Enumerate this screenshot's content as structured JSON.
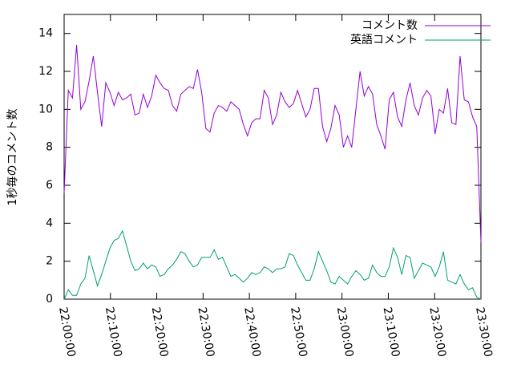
{
  "chart_data": {
    "type": "line",
    "ylabel": "1秒毎のコメント数",
    "x": [
      "22:00:00",
      "22:00:54",
      "22:01:48",
      "22:02:42",
      "22:03:36",
      "22:04:30",
      "22:05:24",
      "22:06:18",
      "22:07:12",
      "22:08:06",
      "22:09:00",
      "22:09:54",
      "22:10:48",
      "22:11:42",
      "22:12:36",
      "22:13:30",
      "22:14:24",
      "22:15:18",
      "22:16:12",
      "22:17:06",
      "22:18:00",
      "22:18:54",
      "22:19:48",
      "22:20:42",
      "22:21:36",
      "22:22:30",
      "22:23:24",
      "22:24:18",
      "22:25:12",
      "22:26:06",
      "22:27:00",
      "22:27:54",
      "22:28:48",
      "22:29:42",
      "22:30:36",
      "22:31:30",
      "22:32:24",
      "22:33:18",
      "22:34:12",
      "22:35:06",
      "22:36:00",
      "22:36:54",
      "22:37:48",
      "22:38:42",
      "22:39:36",
      "22:40:30",
      "22:41:24",
      "22:42:18",
      "22:43:12",
      "22:44:06",
      "22:45:00",
      "22:45:54",
      "22:46:48",
      "22:47:42",
      "22:48:36",
      "22:49:30",
      "22:50:24",
      "22:51:18",
      "22:52:12",
      "22:53:06",
      "22:54:00",
      "22:54:54",
      "22:55:48",
      "22:56:42",
      "22:57:36",
      "22:58:30",
      "22:59:24",
      "23:00:18",
      "23:01:12",
      "23:02:06",
      "23:03:00",
      "23:03:54",
      "23:04:48",
      "23:05:42",
      "23:06:36",
      "23:07:30",
      "23:08:24",
      "23:09:18",
      "23:10:12",
      "23:11:06",
      "23:12:00",
      "23:12:54",
      "23:13:48",
      "23:14:42",
      "23:15:36",
      "23:16:30",
      "23:17:24",
      "23:18:18",
      "23:19:12",
      "23:20:06",
      "23:21:00",
      "23:21:54",
      "23:22:48",
      "23:23:42",
      "23:24:36",
      "23:25:30",
      "23:26:24",
      "23:27:18",
      "23:28:12",
      "23:29:06",
      "23:30:00"
    ],
    "series": [
      {
        "name": "コメント数",
        "color": "#9400d3",
        "values": [
          5.6,
          11,
          10.6,
          13.4,
          10,
          10.4,
          11.5,
          12.8,
          10.9,
          9.1,
          11.4,
          10.9,
          10.2,
          10.9,
          10.5,
          10.6,
          10.8,
          9.7,
          9.8,
          10.8,
          10.1,
          10.7,
          11.8,
          11.4,
          11.1,
          11,
          10.2,
          9.9,
          10.8,
          11,
          11.2,
          11.1,
          12.1,
          10.9,
          9,
          8.8,
          9.8,
          10.2,
          10.1,
          9.9,
          10.4,
          10.2,
          10,
          9.2,
          8.6,
          9.3,
          9.5,
          9.5,
          11,
          10.6,
          9.2,
          9.7,
          10.9,
          10.4,
          10.1,
          10.3,
          11,
          10.3,
          9.6,
          10,
          11.1,
          11.1,
          9.1,
          8.3,
          9,
          10.2,
          9.7,
          8,
          8.6,
          8,
          10,
          12,
          10.7,
          11.2,
          10.8,
          9.2,
          8.6,
          7.9,
          10.5,
          10.9,
          9.6,
          9.1,
          10.5,
          11.4,
          10.2,
          9.7,
          10.6,
          11,
          10.7,
          8.7,
          10,
          9.8,
          11.1,
          9.3,
          9.2,
          12.8,
          10.5,
          10.4,
          9.6,
          9.1,
          3
        ]
      },
      {
        "name": "英語コメント",
        "color": "#009e73",
        "values": [
          0,
          0.5,
          0.2,
          0.2,
          0.8,
          1.1,
          2.3,
          1.5,
          0.7,
          1.3,
          2.0,
          2.7,
          3.1,
          3.2,
          3.6,
          2.8,
          2.0,
          1.5,
          1.6,
          1.9,
          1.6,
          1.8,
          1.7,
          1.2,
          1.3,
          1.6,
          1.8,
          2.1,
          2.5,
          2.4,
          2.0,
          1.7,
          1.8,
          2.2,
          2.2,
          2.2,
          2.6,
          2.1,
          2.2,
          1.7,
          1.2,
          1.3,
          1.1,
          0.9,
          1.1,
          1.4,
          1.3,
          1.4,
          1.7,
          1.6,
          1.4,
          1.6,
          1.6,
          1.7,
          2.4,
          2.3,
          1.8,
          1.4,
          1.0,
          1.0,
          1.6,
          2.5,
          2.0,
          1.5,
          0.9,
          0.8,
          1.2,
          1.0,
          0.8,
          1.2,
          1.5,
          1.3,
          1.0,
          1.1,
          1.8,
          1.4,
          1.2,
          1.2,
          1.7,
          2.7,
          2.2,
          1.3,
          2.3,
          2.2,
          1.1,
          1.5,
          1.9,
          1.8,
          1.7,
          1.2,
          1.7,
          2.5,
          1.0,
          0.9,
          0.8,
          1.3,
          0.8,
          0.5,
          0.6,
          0.1,
          0
        ]
      }
    ],
    "xlim": [
      "22:00:00",
      "23:30:00"
    ],
    "xticks": [
      "22:00:00",
      "22:10:00",
      "22:20:00",
      "22:30:00",
      "22:40:00",
      "22:50:00",
      "23:00:00",
      "23:10:00",
      "23:20:00",
      "23:30:00"
    ],
    "ylim": [
      0,
      15
    ],
    "yticks": [
      0,
      2,
      4,
      6,
      8,
      10,
      12,
      14
    ],
    "legend": "top-right"
  }
}
